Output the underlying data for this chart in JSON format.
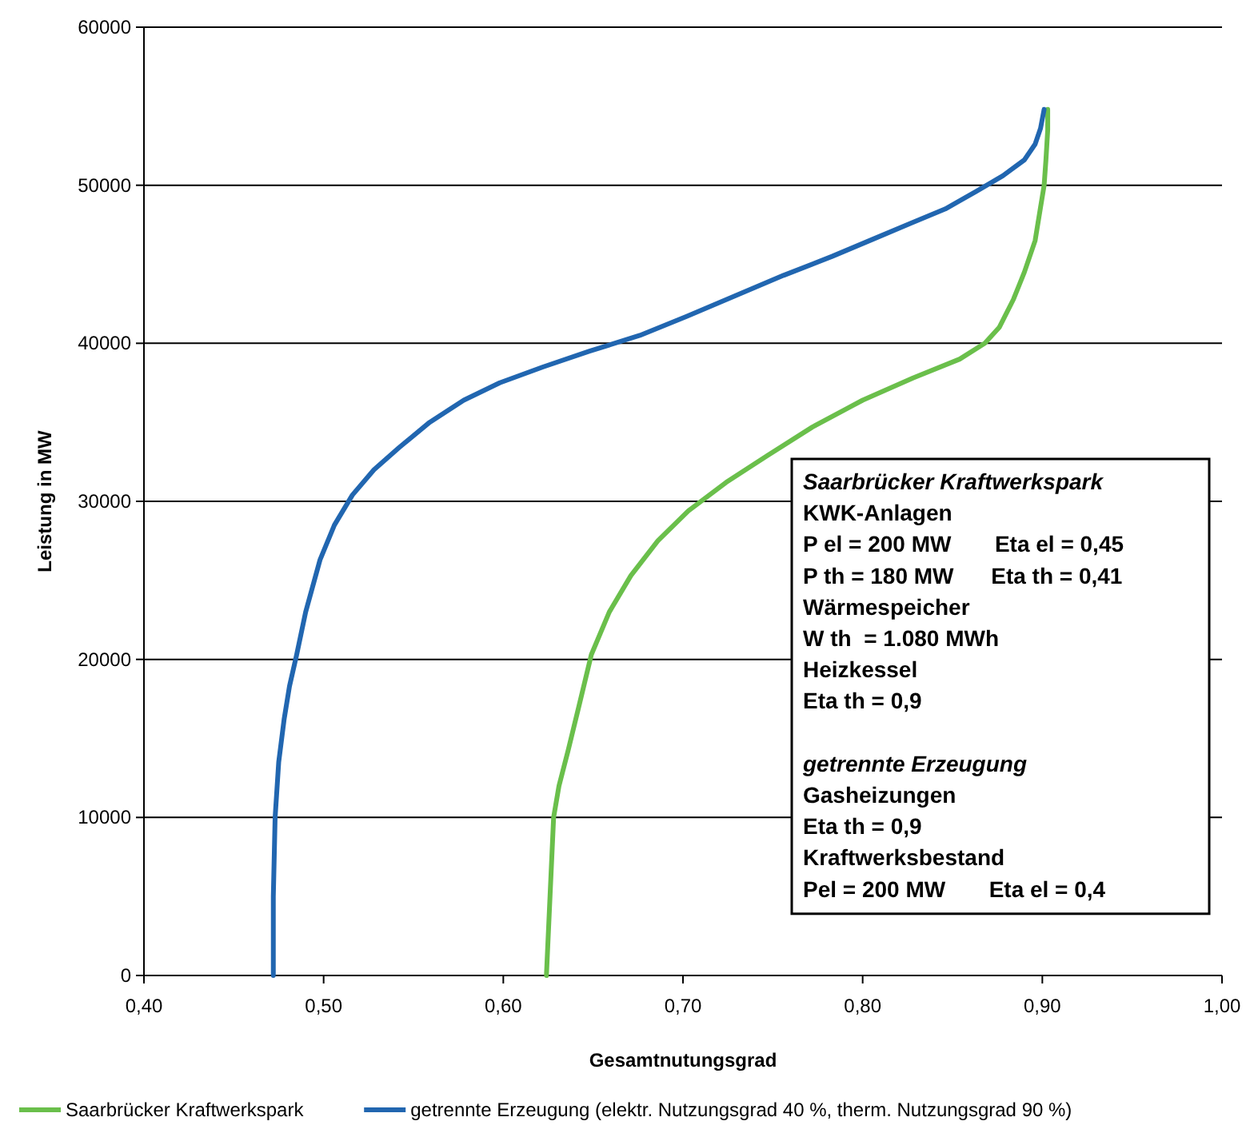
{
  "chart_data": {
    "type": "line",
    "xlabel": "Gesamtnutungsgrad",
    "ylabel": "Leistung in MW",
    "xlim": [
      0.4,
      1.0
    ],
    "xticks": [
      {
        "value": 0.4,
        "label": "0,40"
      },
      {
        "value": 0.5,
        "label": "0,50"
      },
      {
        "value": 0.6,
        "label": "0,60"
      },
      {
        "value": 0.7,
        "label": "0,70"
      },
      {
        "value": 0.8,
        "label": "0,80"
      },
      {
        "value": 0.9,
        "label": "0,90"
      },
      {
        "value": 1.0,
        "label": "1,00"
      }
    ],
    "ylim": [
      0,
      60000
    ],
    "yticks": [
      0,
      10000,
      20000,
      30000,
      40000,
      50000,
      60000
    ],
    "grid": "y",
    "legend": "bottom",
    "line_style": "solid",
    "series": [
      {
        "name": "Saarbrücker Kraftwerkspark",
        "color": "#6abf4b",
        "x": [
          0.624,
          0.626,
          0.628,
          0.631,
          0.636,
          0.642,
          0.649,
          0.659,
          0.671,
          0.686,
          0.703,
          0.724,
          0.747,
          0.772,
          0.8,
          0.828,
          0.854,
          0.868,
          0.876,
          0.884,
          0.89,
          0.896,
          0.899,
          0.901,
          0.902,
          0.903,
          0.903
        ],
        "values": [
          0,
          5000,
          10000,
          12000,
          14200,
          17000,
          20300,
          23000,
          25300,
          27500,
          29400,
          31200,
          32900,
          34700,
          36400,
          37800,
          39000,
          40000,
          41000,
          42800,
          44500,
          46500,
          48600,
          50000,
          51600,
          53500,
          54800
        ]
      },
      {
        "name": "getrennte Erzeugung (elektr. Nutzungsgrad 40 %, therm. Nutzungsgrad 90 %)",
        "color": "#2166b0",
        "x": [
          0.472,
          0.472,
          0.473,
          0.475,
          0.478,
          0.481,
          0.485,
          0.49,
          0.498,
          0.506,
          0.516,
          0.528,
          0.542,
          0.559,
          0.578,
          0.598,
          0.622,
          0.648,
          0.676,
          0.702,
          0.729,
          0.756,
          0.783,
          0.806,
          0.827,
          0.846,
          0.863,
          0.878,
          0.89,
          0.896,
          0.899,
          0.901
        ],
        "values": [
          0,
          5000,
          10000,
          13500,
          16200,
          18300,
          20300,
          23000,
          26300,
          28500,
          30400,
          32000,
          33400,
          35000,
          36400,
          37500,
          38500,
          39500,
          40500,
          41700,
          43000,
          44300,
          45500,
          46600,
          47600,
          48500,
          49600,
          50600,
          51600,
          52600,
          53600,
          54800
        ]
      }
    ],
    "annotations": [
      "Saarbrücker Kraftwerkspark",
      "KWK-Anlagen",
      "P el = 200 MW       Eta el = 0,45",
      "P th = 180 MW      Eta th = 0,41",
      "Wärmespeicher",
      "W th  = 1.080 MWh",
      "Heizkessel",
      "Eta th = 0,9",
      "getrennte Erzeugung",
      "Gasheizungen",
      "Eta th = 0,9",
      "Kraftwerksbestand",
      "Pel = 200 MW       Eta el = 0,4"
    ]
  }
}
